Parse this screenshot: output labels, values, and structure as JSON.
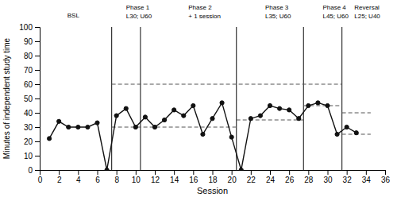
{
  "chart_data": {
    "type": "line",
    "xlabel": "Session",
    "ylabel": "Minutes of independent study time",
    "x": [
      1,
      2,
      3,
      4,
      5,
      6,
      7,
      8,
      9,
      10,
      11,
      12,
      13,
      14,
      15,
      16,
      17,
      18,
      19,
      20,
      21,
      22,
      23,
      24,
      25,
      26,
      27,
      28,
      29,
      30,
      31,
      32,
      33
    ],
    "series": [
      {
        "values": [
          22,
          34,
          30,
          30,
          30,
          33,
          0,
          38,
          43,
          30,
          37,
          30,
          35,
          42,
          38,
          45,
          25,
          36,
          47,
          23,
          0,
          36,
          38,
          45,
          43,
          42,
          36,
          45,
          47,
          45,
          25,
          30,
          26
        ],
        "color": "#111111",
        "marker": "circle"
      }
    ],
    "xlim": [
      0,
      36
    ],
    "ylim": [
      0,
      100
    ],
    "xticks": [
      0,
      2,
      4,
      6,
      8,
      10,
      12,
      14,
      16,
      18,
      20,
      22,
      24,
      26,
      28,
      30,
      32,
      34,
      36
    ],
    "yticks": [
      0,
      10,
      20,
      30,
      40,
      50,
      60,
      70,
      80,
      90,
      100
    ],
    "grid": false,
    "phase_lines": [
      7.5,
      10.5,
      20.5,
      27.5,
      31.5
    ],
    "phase_line_color": "#333333",
    "criterion_lines": [
      {
        "y": 60,
        "xstart": 7.5,
        "xend": 31.5,
        "line_style": "dashed",
        "color": "#555555"
      },
      {
        "y": 30,
        "xstart": 7.5,
        "xend": 20.5,
        "line_style": "dashed",
        "color": "#555555"
      },
      {
        "y": 35,
        "xstart": 20.5,
        "xend": 27.5,
        "line_style": "dashed",
        "color": "#555555"
      },
      {
        "y": 45,
        "xstart": 27.5,
        "xend": 31.5,
        "line_style": "dashed",
        "color": "#555555"
      },
      {
        "y": 40,
        "xstart": 31.5,
        "xend": 34.5,
        "line_style": "dashed",
        "color": "#555555"
      },
      {
        "y": 25,
        "xstart": 31.5,
        "xend": 34.5,
        "line_style": "dashed",
        "color": "#555555"
      }
    ],
    "annotations": [
      {
        "x": 3.5,
        "text": [
          "BSL"
        ]
      },
      {
        "x": 9.0,
        "text": [
          "Phase 1",
          "L30; U60"
        ]
      },
      {
        "x": 15.5,
        "text": [
          "Phase 2",
          "+ 1 session"
        ]
      },
      {
        "x": 23.5,
        "text": [
          "Phase 3",
          "L35; U60"
        ]
      },
      {
        "x": 29.5,
        "text": [
          "Phase 4",
          "L45; U60"
        ]
      },
      {
        "x": 32.8,
        "text": [
          "Reversal",
          "L25; U40"
        ]
      }
    ]
  }
}
